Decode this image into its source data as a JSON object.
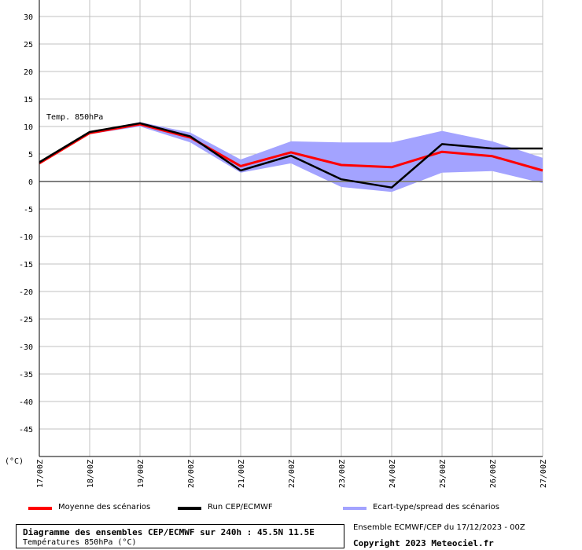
{
  "chart_data": {
    "type": "line",
    "annotation": "Temp. 850hPa",
    "y_unit": "(°C)",
    "x_labels": [
      "17/00Z",
      "18/00Z",
      "19/00Z",
      "20/00Z",
      "21/00Z",
      "22/00Z",
      "23/00Z",
      "24/00Z",
      "25/00Z",
      "26/00Z",
      "27/00Z"
    ],
    "ylim": [
      -50,
      30
    ],
    "y_ticks": [
      30,
      25,
      20,
      15,
      10,
      5,
      0,
      -5,
      -10,
      -15,
      -20,
      -25,
      -30,
      -35,
      -40,
      -45
    ],
    "grid": true,
    "series": [
      {
        "name": "Moyenne des scénarios",
        "color": "#ff0000",
        "values": [
          3.3,
          8.8,
          10.4,
          8.0,
          2.8,
          5.3,
          3.0,
          2.6,
          5.4,
          4.6,
          2.0
        ]
      },
      {
        "name": "Run CEP/ECMWF",
        "color": "#000000",
        "values": [
          3.5,
          9.0,
          10.6,
          8.2,
          2.0,
          4.7,
          0.4,
          -1.1,
          6.8,
          6.0,
          6.0
        ]
      }
    ],
    "spread": {
      "name": "Ecart-type/spread des scénarios",
      "color": "#a3a3ff",
      "upper": [
        3.5,
        9.0,
        10.8,
        8.9,
        4.0,
        7.3,
        7.1,
        7.1,
        9.2,
        7.3,
        4.3
      ],
      "lower": [
        3.1,
        8.6,
        10.0,
        7.1,
        1.6,
        3.3,
        -1.0,
        -1.9,
        1.6,
        1.9,
        -0.3
      ]
    }
  },
  "legend": {
    "mean": "Moyenne des scénarios",
    "run": "Run CEP/ECMWF",
    "spread": "Ecart-type/spread des scénarios"
  },
  "info": {
    "title": "Diagramme des ensembles CEP/ECMWF sur 240h : 45.5N 11.5E",
    "subtitle": "Températures 850hPa (°C)",
    "run": "Ensemble ECMWF/CEP du 17/12/2023 - 00Z",
    "copyright": "Copyright 2023 Meteociel.fr"
  },
  "colors": {
    "mean": "#ff0000",
    "run": "#000000",
    "spread": "#a3a3ff",
    "grid": "#c0c0c0",
    "zero": "#808080"
  }
}
